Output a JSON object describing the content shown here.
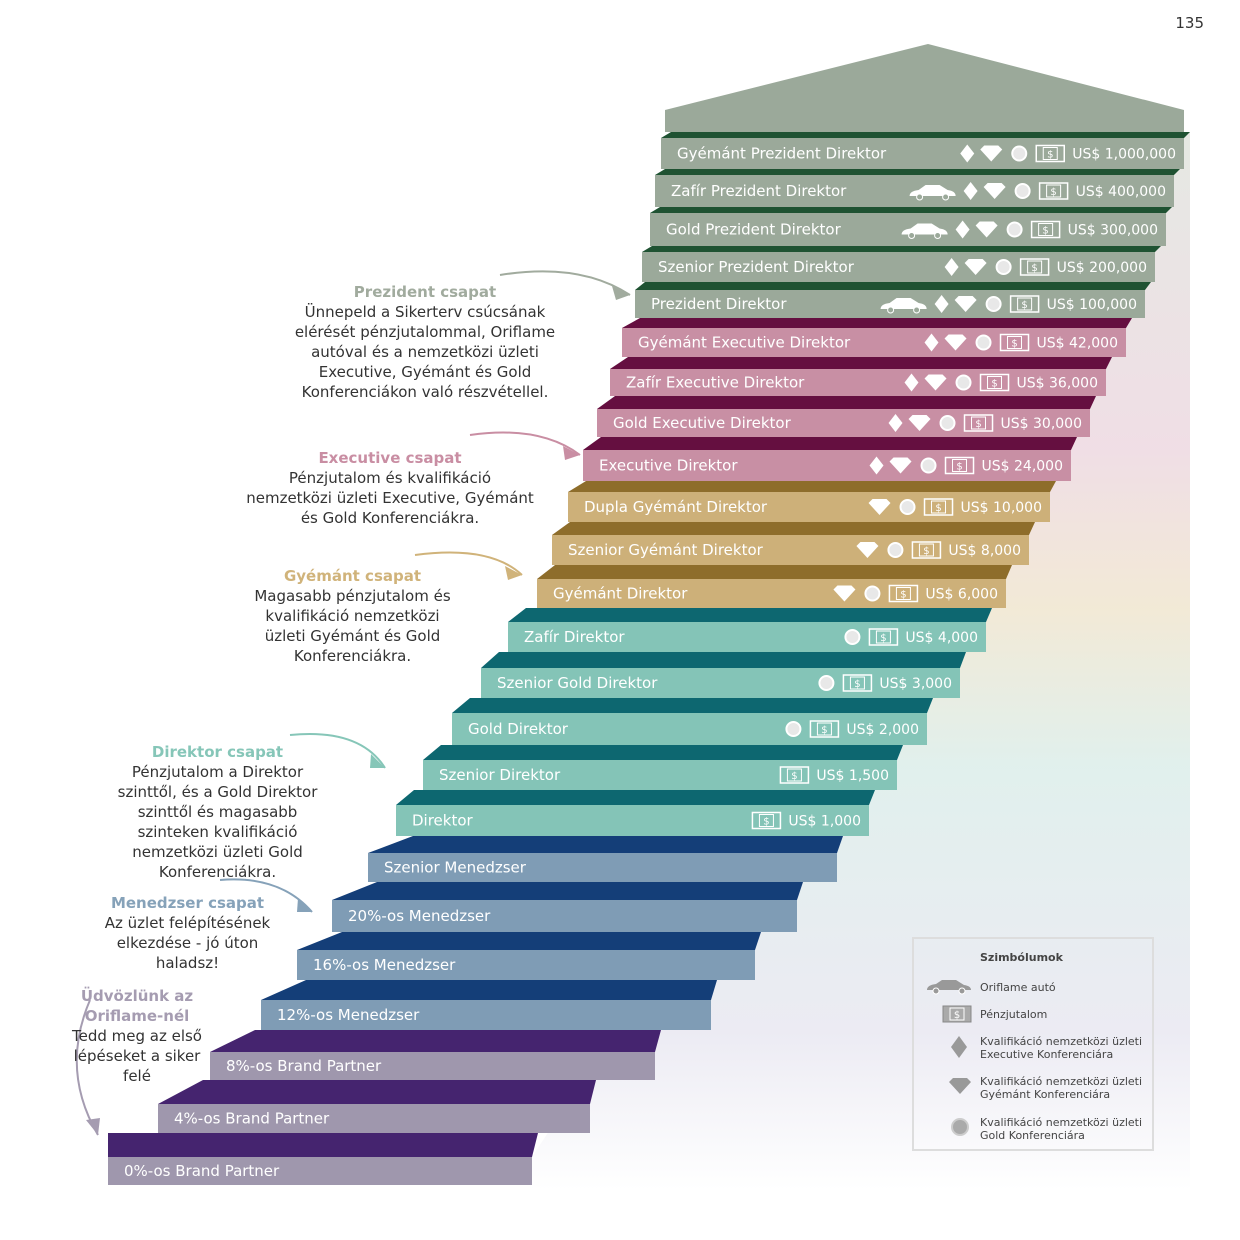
{
  "page_number": "135",
  "colors": {
    "prezident": {
      "face": "#9ba99a",
      "top": "#1f5232"
    },
    "executive": {
      "face": "#c88fa4",
      "top": "#650f40"
    },
    "gyemant": {
      "face": "#cdb079",
      "top": "#8e6d2b"
    },
    "direktor": {
      "face": "#84c4b7",
      "top": "#0d6770"
    },
    "menedzser": {
      "face": "#7f9cb5",
      "top": "#143e78"
    },
    "brand": {
      "face": "#9f97ad",
      "top": "#45246f"
    }
  },
  "steps": [
    {
      "label": "0%-os Brand Partner",
      "group": "brand",
      "reward": "",
      "icons": []
    },
    {
      "label": "4%-os Brand Partner",
      "group": "brand",
      "reward": "",
      "icons": []
    },
    {
      "label": "8%-os Brand Partner",
      "group": "brand",
      "reward": "",
      "icons": []
    },
    {
      "label": "12%-os Menedzser",
      "group": "menedzser",
      "reward": "",
      "icons": []
    },
    {
      "label": "16%-os Menedzser",
      "group": "menedzser",
      "reward": "",
      "icons": []
    },
    {
      "label": "20%-os Menedzser",
      "group": "menedzser",
      "reward": "",
      "icons": []
    },
    {
      "label": "Szenior Menedzser",
      "group": "menedzser",
      "reward": "",
      "icons": []
    },
    {
      "label": "Direktor",
      "group": "direktor",
      "reward": "US$ 1,000",
      "icons": [
        "cash"
      ]
    },
    {
      "label": "Szenior Direktor",
      "group": "direktor",
      "reward": "US$ 1,500",
      "icons": [
        "cash"
      ]
    },
    {
      "label": "Gold Direktor",
      "group": "direktor",
      "reward": "US$ 2,000",
      "icons": [
        "gold",
        "cash"
      ]
    },
    {
      "label": "Szenior Gold Direktor",
      "group": "direktor",
      "reward": "US$ 3,000",
      "icons": [
        "gold",
        "cash"
      ]
    },
    {
      "label": "Zafír Direktor",
      "group": "direktor",
      "reward": "US$ 4,000",
      "icons": [
        "gold",
        "cash"
      ]
    },
    {
      "label": "Gyémánt Direktor",
      "group": "gyemant",
      "reward": "US$ 6,000",
      "icons": [
        "diamond",
        "gold",
        "cash"
      ]
    },
    {
      "label": "Szenior Gyémánt Direktor",
      "group": "gyemant",
      "reward": "US$ 8,000",
      "icons": [
        "diamond",
        "gold",
        "cash"
      ]
    },
    {
      "label": "Dupla Gyémánt Direktor",
      "group": "gyemant",
      "reward": "US$ 10,000",
      "icons": [
        "diamond",
        "gold",
        "cash"
      ]
    },
    {
      "label": "Executive Direktor",
      "group": "executive",
      "reward": "US$ 24,000",
      "icons": [
        "executive",
        "diamond",
        "gold",
        "cash"
      ]
    },
    {
      "label": "Gold Executive Direktor",
      "group": "executive",
      "reward": "US$ 30,000",
      "icons": [
        "executive",
        "diamond",
        "gold",
        "cash"
      ]
    },
    {
      "label": "Zafír Executive Direktor",
      "group": "executive",
      "reward": "US$ 36,000",
      "icons": [
        "executive",
        "diamond",
        "gold",
        "cash"
      ]
    },
    {
      "label": "Gyémánt Executive Direktor",
      "group": "executive",
      "reward": "US$ 42,000",
      "icons": [
        "executive",
        "diamond",
        "gold",
        "cash"
      ]
    },
    {
      "label": "Prezident Direktor",
      "group": "prezident",
      "reward": "US$ 100,000",
      "icons": [
        "car",
        "executive",
        "diamond",
        "gold",
        "cash"
      ]
    },
    {
      "label": "Szenior Prezident Direktor",
      "group": "prezident",
      "reward": "US$ 200,000",
      "icons": [
        "executive",
        "diamond",
        "gold",
        "cash"
      ]
    },
    {
      "label": "Gold Prezident Direktor",
      "group": "prezident",
      "reward": "US$ 300,000",
      "icons": [
        "car",
        "executive",
        "diamond",
        "gold",
        "cash"
      ]
    },
    {
      "label": "Zafír Prezident Direktor",
      "group": "prezident",
      "reward": "US$ 400,000",
      "icons": [
        "car",
        "executive",
        "diamond",
        "gold",
        "cash"
      ]
    },
    {
      "label": "Gyémánt Prezident Direktor",
      "group": "prezident",
      "reward": "US$ 1,000,000",
      "icons": [
        "executive",
        "diamond",
        "gold",
        "cash"
      ]
    }
  ],
  "annotations": {
    "prezident": {
      "heading": "Prezident csapat",
      "heading_color": "#a1ab9e",
      "text": "Ünnepeld a Sikerterv csúcsának elérését pénzjutalommal, Oriflame autóval és a nemzetközi üzleti Executive, Gyémánt és Gold Konferenciákon való részvétellel."
    },
    "executive": {
      "heading": "Executive csapat",
      "heading_color": "#c98ea3",
      "text": "Pénzjutalom és kvalifikáció nemzetközi üzleti Executive, Gyémánt és Gold Konferenciákra."
    },
    "gyemant": {
      "heading": "Gyémánt csapat",
      "heading_color": "#d0b37a",
      "text": "Magasabb pénzjutalom és kvalifikáció nemzetközi üzleti Gyémánt és Gold Konferenciákra."
    },
    "direktor": {
      "heading": "Direktor csapat",
      "heading_color": "#86c6b8",
      "text": "Pénzjutalom a Direktor szinttől, és a Gold Direktor szinttől és magasabb szinteken kvalifikáció nemzetközi üzleti Gold Konferenciákra."
    },
    "menedzser": {
      "heading": "Menedzser csapat",
      "heading_color": "#86a2b9",
      "text": "Az üzlet felépítésének elkezdése - jó úton haladsz!"
    },
    "udvozlunk": {
      "heading": "Üdvözlünk az Oriflame-nél",
      "heading_color": "#a59cb1",
      "text": "Tedd meg az első lépéseket a siker felé"
    }
  },
  "legend": {
    "title": "Szimbólumok",
    "items": [
      {
        "icon": "car",
        "text": "Oriflame autó"
      },
      {
        "icon": "cash",
        "text": "Pénzjutalom"
      },
      {
        "icon": "executive",
        "text": "Kvalifikáció nemzetközi üzleti Executive Konferenciára"
      },
      {
        "icon": "diamond",
        "text": "Kvalifikáció nemzetközi üzleti Gyémánt Konferenciára"
      },
      {
        "icon": "gold",
        "text": "Kvalifikáció nemzetközi üzleti Gold Konferenciára"
      }
    ]
  }
}
